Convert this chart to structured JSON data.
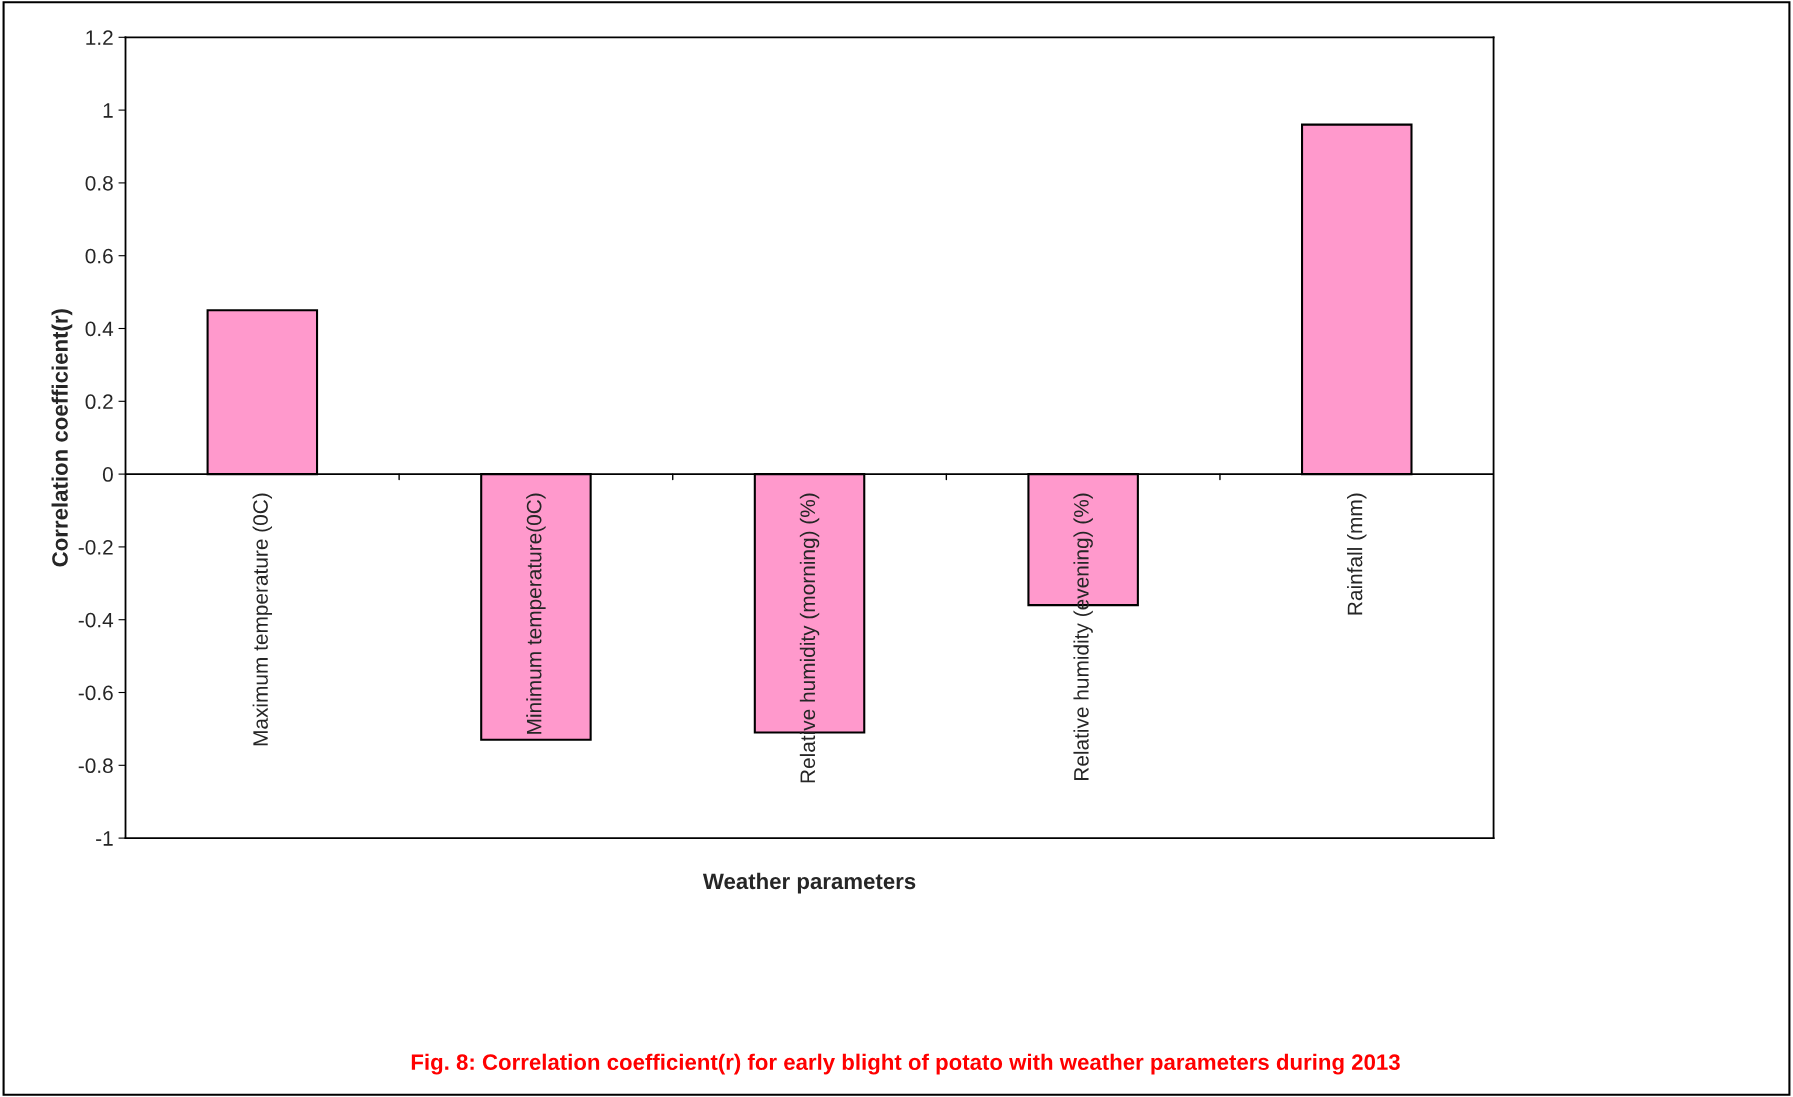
{
  "chart_data": {
    "type": "bar",
    "title": "Fig. 8: Correlation coefficient(r) for early blight of potato with weather parameters during 2013",
    "xlabel": "Weather parameters",
    "ylabel": "Correlation coefficient(r)",
    "categories": [
      "Maximum temperature (0C)",
      "Minimum temperature(0C)",
      "Relative humidity (morning) (%)",
      "Relative humidity (evening) (%)",
      "Rainfall (mm)"
    ],
    "values": [
      0.45,
      -0.73,
      -0.71,
      -0.36,
      0.96
    ],
    "color": "#ff99cc",
    "ylim": [
      -1,
      1.2
    ],
    "yticks": [
      -1,
      -0.8,
      -0.6,
      -0.4,
      -0.2,
      0,
      0.2,
      0.4,
      0.6,
      0.8,
      1,
      1.2
    ],
    "grid": false,
    "legend": false
  }
}
